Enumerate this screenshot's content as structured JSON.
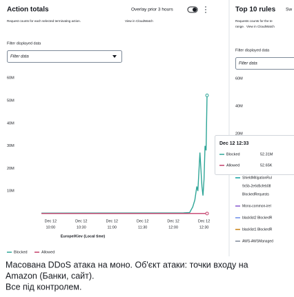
{
  "header": {
    "title": "Action totals",
    "overlay": "Overlay prior 3 hours",
    "description": "Request counts for each selected terminating action.",
    "link": "View in CloudWatch"
  },
  "filter": {
    "label": "Filter displayed data",
    "placeholder": "Filter data"
  },
  "chart_data": {
    "type": "line",
    "x_label": "Europe/Kiev (Local time)",
    "x": [
      "09:51",
      "12:10",
      "12:16",
      "12:19",
      "12:21",
      "12:23",
      "12:24",
      "12:26",
      "12:28",
      "12:29",
      "12:30",
      "12:31",
      "12:32",
      "12:33"
    ],
    "xlim": [
      "09:51",
      "12:35"
    ],
    "xticks": [
      {
        "date": "Dec 12",
        "time": "10:00"
      },
      {
        "date": "Dec 12",
        "time": "10:30"
      },
      {
        "date": "Dec 12",
        "time": "11:00"
      },
      {
        "date": "Dec 12",
        "time": "11:30"
      },
      {
        "date": "Dec 12",
        "time": "12:00"
      },
      {
        "date": "Dec 12",
        "time": "12:30"
      }
    ],
    "ylim": [
      0,
      62500000
    ],
    "yticks": [
      {
        "value": 10000000,
        "label": "10M"
      },
      {
        "value": 20000000,
        "label": "20M"
      },
      {
        "value": 30000000,
        "label": "30M"
      },
      {
        "value": 40000000,
        "label": "40M"
      },
      {
        "value": 50000000,
        "label": "50M"
      },
      {
        "value": 60000000,
        "label": "60M"
      }
    ],
    "grid": false,
    "legend": "bottom-left",
    "series": [
      {
        "name": "Blocked",
        "color": "#2ea597",
        "values": [
          200000,
          300000,
          500000,
          3000000,
          6000000,
          12000000,
          10000000,
          27000000,
          12000000,
          8000000,
          15000000,
          30000000,
          28000000,
          52310000
        ]
      },
      {
        "name": "Allowed",
        "color": "#c33d69",
        "values": [
          50000,
          50000,
          50000,
          50000,
          50000,
          50000,
          50000,
          50000,
          50000,
          50000,
          50000,
          50000,
          50000,
          52650
        ]
      }
    ]
  },
  "tooltip": {
    "time": "Dec 12 12:33",
    "rows": [
      {
        "name": "Blocked",
        "value": "52.31M"
      },
      {
        "name": "Allowed",
        "value": "52.65K"
      }
    ]
  },
  "right_panel": {
    "title": "Top 10 rules",
    "extra": "Sw",
    "description": [
      "Requests counts for the te",
      "range."
    ],
    "link": "View in CloudWatch",
    "filter_label": "Filter displayed data",
    "placeholder": "Filter data",
    "yticks": [
      "60M",
      "40M",
      "20M"
    ],
    "legend": [
      {
        "lines": [
          "ShieldMitigationRul",
          "9c5b-2e6d5cfeb08",
          "BlockedRequests"
        ],
        "color": "#0f9fa0"
      },
      {
        "lines": [
          "Mono-common-irel"
        ],
        "color": "#8456ce"
      },
      {
        "lines": [
          "blacklist2 BlockedR"
        ],
        "color": "#688ae8"
      },
      {
        "lines": [
          "blacklist1 BlockedR"
        ],
        "color": "#c8800f"
      },
      {
        "lines": [
          "AWS-AWSManaged"
        ],
        "color": "#7d8998"
      }
    ]
  },
  "caption": [
    "Масована DDoS атака на моно. Об'єкт атаки: точки входу на",
    "Amazon (Банки, сайт).",
    "Все під контролем."
  ]
}
